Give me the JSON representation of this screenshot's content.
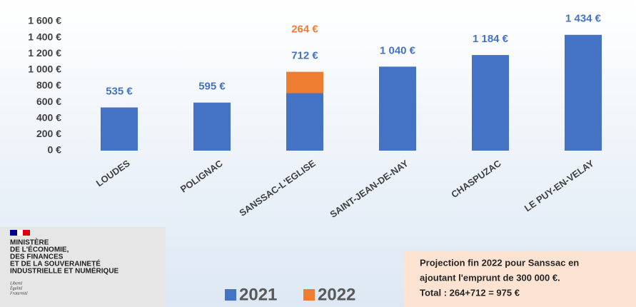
{
  "chart_data": {
    "type": "bar",
    "stacked": true,
    "categories": [
      "LOUDES",
      "POLIGNAC",
      "SANSSAC-L'EGLISE",
      "SAINT-JEAN-DE-NAY",
      "CHASPUZAC",
      "LE PUY-EN-VELAY"
    ],
    "series": [
      {
        "name": "2021",
        "color": "#4472c4",
        "values": [
          535,
          595,
          712,
          1040,
          1184,
          1434
        ],
        "value_labels": [
          "535 €",
          "595 €",
          "712 €",
          "1 040 €",
          "1 184 €",
          "1 434 €"
        ]
      },
      {
        "name": "2022",
        "color": "#ed7d31",
        "values": [
          null,
          null,
          264,
          null,
          null,
          null
        ],
        "value_labels": [
          null,
          null,
          "264 €",
          null,
          null,
          null
        ]
      }
    ],
    "ylim": [
      0,
      1600
    ],
    "yticks": [
      {
        "value": 0,
        "label": "0 €"
      },
      {
        "value": 200,
        "label": "200 €"
      },
      {
        "value": 400,
        "label": "400 €"
      },
      {
        "value": 600,
        "label": "600 €"
      },
      {
        "value": 800,
        "label": "800 €"
      },
      {
        "value": 1000,
        "label": "1 000 €"
      },
      {
        "value": 1200,
        "label": "1 200 €"
      },
      {
        "value": 1400,
        "label": "1 400 €"
      },
      {
        "value": 1600,
        "label": "1 600 €"
      }
    ],
    "annotation": [
      "Projection fin 2022 pour Sanssac en",
      "ajoutant l'emprunt de 300 000 €.",
      "Total : 264+712 = 975 €"
    ]
  },
  "logo": {
    "lines": [
      "MINISTÈRE",
      "DE L'ÉCONOMIE,",
      "DES FINANCES",
      "ET DE LA SOUVERAINETÉ",
      "INDUSTRIELLE ET NUMÉRIQUE"
    ],
    "motto": [
      "Liberté",
      "Égalité",
      "Fraternité"
    ]
  }
}
